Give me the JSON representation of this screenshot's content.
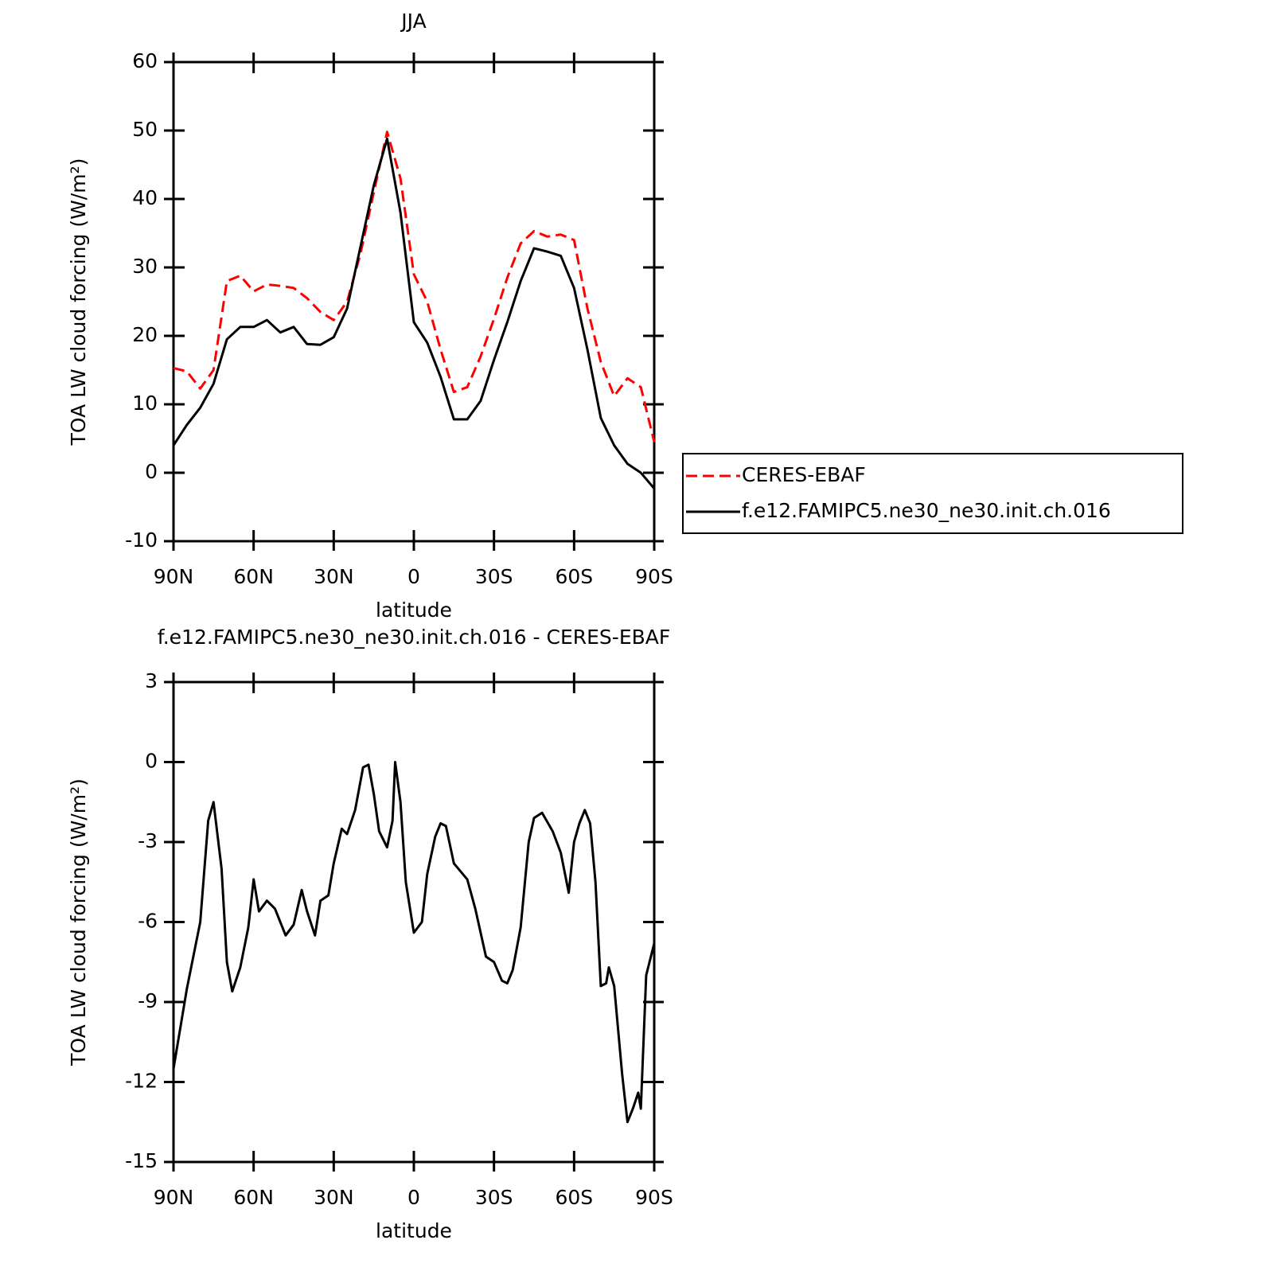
{
  "chart_data": [
    {
      "type": "line",
      "title": "JJA",
      "x_label": "latitude",
      "y_label": "TOA LW cloud forcing (W/m²)",
      "x": [
        90,
        85,
        80,
        75,
        70,
        65,
        60,
        55,
        50,
        45,
        40,
        35,
        30,
        25,
        20,
        15,
        10,
        5,
        0,
        -5,
        -10,
        -15,
        -20,
        -25,
        -30,
        -35,
        -40,
        -45,
        -50,
        -55,
        -60,
        -65,
        -70,
        -75,
        -80,
        -85,
        -90
      ],
      "series": [
        {
          "name": "CERES-EBAF",
          "color": "#ff0000",
          "style": "dashed",
          "values": [
            15.3,
            14.8,
            12.3,
            15,
            28,
            28.8,
            26.5,
            27.5,
            27.3,
            27,
            25.5,
            23.5,
            22.3,
            25,
            32,
            41,
            49.8,
            43,
            29,
            25,
            18,
            11.8,
            12.5,
            17,
            22.5,
            28.5,
            33.5,
            35.3,
            34.5,
            34.8,
            34,
            24,
            16.2,
            11.2,
            13.8,
            12.5,
            4.5
          ]
        },
        {
          "name": "f.e12.FAMIPC5.ne30_ne30.init.ch.016",
          "color": "#000000",
          "style": "solid",
          "values": [
            4,
            7,
            9.5,
            13,
            19.5,
            21.3,
            21.3,
            22.3,
            20.5,
            21.3,
            18.8,
            18.7,
            19.8,
            24,
            33,
            42,
            48.8,
            38,
            22,
            19,
            14,
            7.8,
            7.8,
            10.5,
            16.5,
            22,
            28,
            32.8,
            32.3,
            31.7,
            27,
            18,
            8,
            4,
            1.3,
            0,
            -2.3
          ]
        }
      ],
      "xlim": [
        90,
        -90
      ],
      "xticks": [
        {
          "value": 90,
          "label": "90N"
        },
        {
          "value": 60,
          "label": "60N"
        },
        {
          "value": 30,
          "label": "30N"
        },
        0,
        {
          "value": -30,
          "label": "30S"
        },
        {
          "value": -60,
          "label": "60S"
        },
        {
          "value": -90,
          "label": "90S"
        }
      ],
      "ylim": [
        -10,
        60
      ],
      "yticks": [
        -10,
        0,
        10,
        20,
        30,
        40,
        50,
        60
      ],
      "legend": "outside-right"
    },
    {
      "type": "line",
      "title": "f.e12.FAMIPC5.ne30_ne30.init.ch.016 - CERES-EBAF",
      "x_label": "latitude",
      "y_label": "TOA LW cloud forcing (W/m²)",
      "x": [
        90,
        85,
        80,
        77,
        75,
        72,
        70,
        68,
        65,
        62,
        60,
        58,
        55,
        52,
        48,
        45,
        42,
        40,
        37,
        35,
        32,
        30,
        27,
        25,
        22,
        19,
        17,
        15,
        13,
        10,
        8,
        7,
        5,
        3,
        0,
        -3,
        -5,
        -8,
        -10,
        -12,
        -15,
        -20,
        -23,
        -27,
        -30,
        -33,
        -35,
        -37,
        -40,
        -43,
        -45,
        -48,
        -52,
        -55,
        -58,
        -60,
        -62,
        -64,
        -66,
        -68,
        -70,
        -72,
        -73,
        -75,
        -78,
        -80,
        -82,
        -84,
        -85,
        -87,
        -90
      ],
      "series": [
        {
          "color": "#000000",
          "style": "solid",
          "values": [
            -11.5,
            -8.5,
            -6,
            -2.2,
            -1.5,
            -4,
            -7.5,
            -8.6,
            -7.7,
            -6.2,
            -4.4,
            -5.6,
            -5.2,
            -5.5,
            -6.5,
            -6.1,
            -4.8,
            -5.6,
            -6.5,
            -5.2,
            -5,
            -3.8,
            -2.5,
            -2.7,
            -1.8,
            -0.2,
            -0.1,
            -1.2,
            -2.6,
            -3.2,
            -2.2,
            0,
            -1.5,
            -4.5,
            -6.4,
            -6,
            -4.2,
            -2.8,
            -2.3,
            -2.4,
            -3.8,
            -4.4,
            -5.5,
            -7.3,
            -7.5,
            -8.2,
            -8.3,
            -7.8,
            -6.2,
            -3,
            -2.1,
            -1.9,
            -2.6,
            -3.4,
            -4.9,
            -3,
            -2.3,
            -1.8,
            -2.3,
            -4.5,
            -8.4,
            -8.3,
            -7.7,
            -8.4,
            -11.7,
            -13.5,
            -13,
            -12.4,
            -13,
            -8,
            -6.8
          ]
        }
      ],
      "xlim": [
        90,
        -90
      ],
      "xticks": [
        {
          "value": 90,
          "label": "90N"
        },
        {
          "value": 60,
          "label": "60N"
        },
        {
          "value": 30,
          "label": "30N"
        },
        0,
        {
          "value": -30,
          "label": "30S"
        },
        {
          "value": -60,
          "label": "60S"
        },
        {
          "value": -90,
          "label": "90S"
        }
      ],
      "ylim": [
        -15,
        3
      ],
      "yticks": [
        -15,
        -12,
        -9,
        -6,
        -3,
        0,
        3
      ]
    }
  ]
}
